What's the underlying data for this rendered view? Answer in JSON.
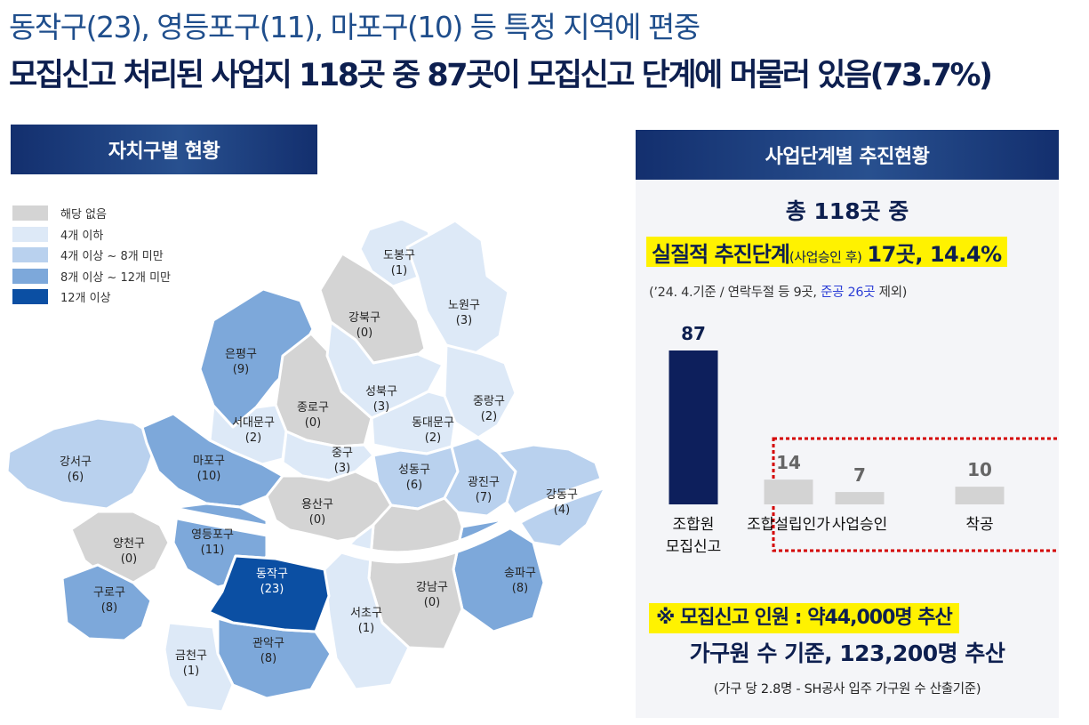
{
  "headline": {
    "line1": "동작구(23), 영등포구(11), 마포구(10) 등 특정 지역에 편중",
    "line2": "모집신고 처리된 사업지 118곳 중 87곳이 모집신고 단계에 머물러 있음(73.7%)"
  },
  "colors": {
    "header_bg": "#1b3b7a",
    "bar_primary": "#0d1f5c",
    "bar_secondary": "#d3d3d3",
    "highlight": "#fff200",
    "dashed_box": "#d40000",
    "tier_none": "#d4d4d4",
    "tier_1": "#dde9f7",
    "tier_2": "#b9d1ee",
    "tier_3": "#7da8da",
    "tier_4": "#0b4fa3"
  },
  "map_section": {
    "header": "자치구별 현황",
    "legend": [
      {
        "label": "해당 없음",
        "tier": "none"
      },
      {
        "label": "4개 이하",
        "tier": "1"
      },
      {
        "label": "4개 이상 ~ 8개 미만",
        "tier": "2"
      },
      {
        "label": "8개 이상 ~ 12개 미만",
        "tier": "3"
      },
      {
        "label": "12개 이상",
        "tier": "4"
      }
    ],
    "districts": [
      {
        "name": "도봉구",
        "count": "(1)",
        "tier": "1"
      },
      {
        "name": "노원구",
        "count": "(3)",
        "tier": "1"
      },
      {
        "name": "강북구",
        "count": "(0)",
        "tier": "none"
      },
      {
        "name": "은평구",
        "count": "(9)",
        "tier": "3"
      },
      {
        "name": "종로구",
        "count": "(0)",
        "tier": "none"
      },
      {
        "name": "성북구",
        "count": "(3)",
        "tier": "1"
      },
      {
        "name": "중랑구",
        "count": "(2)",
        "tier": "1"
      },
      {
        "name": "서대문구",
        "count": "(2)",
        "tier": "1"
      },
      {
        "name": "동대문구",
        "count": "(2)",
        "tier": "1"
      },
      {
        "name": "강서구",
        "count": "(6)",
        "tier": "2"
      },
      {
        "name": "마포구",
        "count": "(10)",
        "tier": "3"
      },
      {
        "name": "중구",
        "count": "(3)",
        "tier": "1"
      },
      {
        "name": "성동구",
        "count": "(6)",
        "tier": "2"
      },
      {
        "name": "광진구",
        "count": "(7)",
        "tier": "2"
      },
      {
        "name": "강동구",
        "count": "(4)",
        "tier": "2"
      },
      {
        "name": "용산구",
        "count": "(0)",
        "tier": "none"
      },
      {
        "name": "양천구",
        "count": "(0)",
        "tier": "none"
      },
      {
        "name": "영등포구",
        "count": "(11)",
        "tier": "3"
      },
      {
        "name": "송파구",
        "count": "(8)",
        "tier": "3"
      },
      {
        "name": "동작구",
        "count": "(23)",
        "tier": "4"
      },
      {
        "name": "강남구",
        "count": "(0)",
        "tier": "none"
      },
      {
        "name": "구로구",
        "count": "(8)",
        "tier": "3"
      },
      {
        "name": "서초구",
        "count": "(1)",
        "tier": "1"
      },
      {
        "name": "관악구",
        "count": "(8)",
        "tier": "3"
      },
      {
        "name": "금천구",
        "count": "(1)",
        "tier": "1"
      }
    ]
  },
  "stage_section": {
    "header": "사업단계별 추진현황",
    "total": "총 118곳 중",
    "substantive_label": "실질적 추진단계",
    "substantive_note": "(사업승인 후)",
    "substantive_value": "17곳, 14.4%",
    "basis_prefix": "(’24. 4.기준 / 연락두절 등 9곳,",
    "basis_highlight": "준공 26곳",
    "basis_suffix": "제외)"
  },
  "chart_data": {
    "type": "bar",
    "categories": [
      "조합원\n모집신고",
      "조합설립인가",
      "사업승인",
      "착공"
    ],
    "values": [
      87,
      14,
      7,
      10
    ],
    "title": "",
    "xlabel": "",
    "ylabel": "",
    "ylim": [
      0,
      87
    ],
    "grid": false,
    "highlighted_categories": [
      "사업승인",
      "착공"
    ]
  },
  "population": {
    "line": "※ 모집신고 인원 : 약44,000명 추산",
    "household": "가구원 수 기준, 123,200명 추산",
    "note": "(가구 당 2.8명 - SH공사 입주 가구원 수 산출기준)"
  }
}
